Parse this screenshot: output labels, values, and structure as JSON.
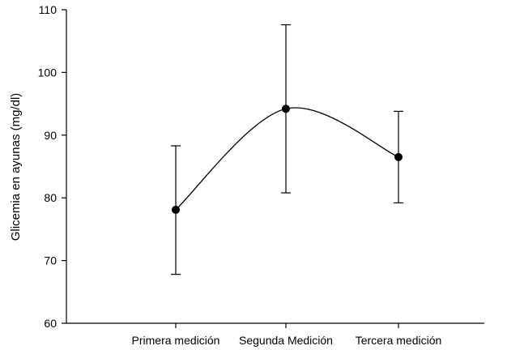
{
  "chart_data": {
    "type": "line",
    "title": "",
    "xlabel": "",
    "ylabel": "Glicemia en ayunas (mg/dl)",
    "categories": [
      "Primera medición",
      "Segunda Medición",
      "Tercera medición"
    ],
    "ylim": [
      60,
      110
    ],
    "yticks": [
      "60",
      "70",
      "80",
      "90",
      "100",
      "110"
    ],
    "series": [
      {
        "values": [
          78.1,
          94.2,
          86.5
        ],
        "error_low": [
          67.8,
          80.8,
          79.2
        ],
        "error_high": [
          88.3,
          107.6,
          93.8
        ]
      }
    ],
    "smoothed_line": true,
    "grid": false,
    "colors": {
      "line": "#000000",
      "marker": "#000000"
    }
  }
}
